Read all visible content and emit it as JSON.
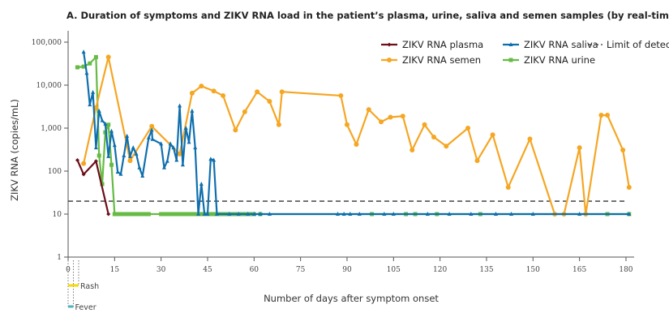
{
  "chart_data": {
    "type": "line",
    "title": "A. Duration of symptoms and ZIKV RNA load in the patient’s plasma, urine, saliva and semen samples (by real-time RT-PCR)",
    "xlabel": "Number of days after symptom onset",
    "ylabel": "ZIKV RNA (copies/mL)",
    "xlim": [
      0,
      180
    ],
    "ylim": [
      1,
      100000
    ],
    "yscale": "log",
    "xticks": [
      "0",
      "15",
      "30",
      "45",
      "60",
      "75",
      "90",
      "105",
      "120",
      "135",
      "150",
      "165",
      "180"
    ],
    "yticks": [
      "1",
      "10",
      "100",
      "1,000",
      "10,000",
      "100,000"
    ],
    "grid": false,
    "legend_position": "top-right",
    "limit_of_detection": {
      "name": "Limit of detection",
      "value": 20,
      "color": "#333333"
    },
    "series": [
      {
        "name": "ZIKV RNA plasma",
        "color": "#6b0f1a",
        "marker": "diamond",
        "x": [
          3,
          5,
          9,
          13
        ],
        "y": [
          180,
          84,
          170,
          10
        ]
      },
      {
        "name": "ZIKV RNA saliva",
        "color": "#0f6fae",
        "marker": "triangle",
        "x": [
          5,
          6,
          7,
          8,
          9,
          10,
          11,
          12,
          13,
          14,
          15,
          16,
          17,
          18,
          19,
          20,
          21,
          22,
          23,
          24,
          26,
          27,
          27.2,
          30,
          31,
          32,
          33,
          34,
          35,
          36,
          37,
          38,
          39,
          40,
          41,
          42,
          43,
          44,
          45,
          46,
          47,
          48,
          52,
          55,
          58,
          60,
          62,
          65,
          87,
          89,
          91,
          94,
          102,
          105,
          116,
          123,
          130,
          138,
          143,
          150,
          165,
          181
        ],
        "y": [
          59000,
          19000,
          3500,
          6800,
          350,
          2500,
          1500,
          1250,
          220,
          850,
          400,
          95,
          85,
          230,
          650,
          220,
          350,
          250,
          120,
          77,
          600,
          900,
          550,
          430,
          120,
          170,
          430,
          350,
          180,
          3300,
          140,
          1000,
          470,
          2500,
          350,
          10,
          50,
          10,
          10,
          190,
          180,
          10,
          10,
          10,
          10,
          10,
          10,
          10,
          10,
          10,
          10,
          10,
          10,
          10,
          10,
          10,
          10,
          10,
          10,
          10,
          10,
          10
        ]
      },
      {
        "name": "ZIKV RNA urine",
        "color": "#66bb45",
        "marker": "square",
        "x": [
          3,
          5,
          7,
          9,
          10,
          11,
          12,
          13,
          14,
          15,
          16,
          17,
          18,
          19,
          20,
          21,
          22,
          23,
          24,
          25,
          26,
          30,
          31,
          32,
          33,
          34,
          35,
          36,
          37,
          38,
          39,
          40,
          41,
          42,
          43,
          44,
          45,
          46,
          47,
          48,
          49,
          50,
          51,
          52,
          53,
          54,
          55,
          56,
          57,
          58,
          59,
          60,
          62,
          98,
          109,
          112,
          119,
          133,
          174,
          181
        ],
        "y": [
          26000,
          27000,
          32000,
          45000,
          230,
          50,
          800,
          1200,
          140,
          10,
          10,
          10,
          10,
          10,
          10,
          10,
          10,
          10,
          10,
          10,
          10,
          10,
          10,
          10,
          10,
          10,
          10,
          10,
          10,
          10,
          10,
          10,
          10,
          10,
          10,
          10,
          10,
          10,
          10,
          10,
          10,
          10,
          10,
          10,
          10,
          10,
          10,
          10,
          10,
          10,
          10,
          10,
          10,
          10,
          10,
          10,
          10,
          10,
          10,
          10
        ]
      },
      {
        "name": "ZIKV RNA semen",
        "color": "#f5a623",
        "marker": "circle",
        "x": [
          5,
          9,
          13,
          20,
          27,
          36,
          40,
          43,
          47,
          50,
          54,
          57,
          61,
          65,
          68,
          69,
          88,
          90,
          93,
          97,
          101,
          104,
          108,
          111,
          115,
          118,
          122,
          129,
          132,
          137,
          142,
          149,
          157,
          160,
          165,
          167,
          172,
          174,
          179,
          181
        ],
        "y": [
          150,
          3000,
          45000,
          175,
          1100,
          250,
          6500,
          9500,
          7300,
          5700,
          900,
          2400,
          7000,
          4200,
          1200,
          7000,
          5700,
          1200,
          420,
          2700,
          1400,
          1800,
          1900,
          310,
          1200,
          620,
          380,
          1000,
          175,
          700,
          42,
          560,
          10,
          10,
          350,
          10,
          2000,
          2000,
          310,
          42
        ]
      }
    ],
    "symptoms": [
      {
        "name": "Rash",
        "start": 0,
        "end": 3.4,
        "color": "#f5d90a"
      },
      {
        "name": "Fever",
        "start": 0,
        "end": 1.7,
        "color": "#4fb3bf"
      }
    ]
  }
}
